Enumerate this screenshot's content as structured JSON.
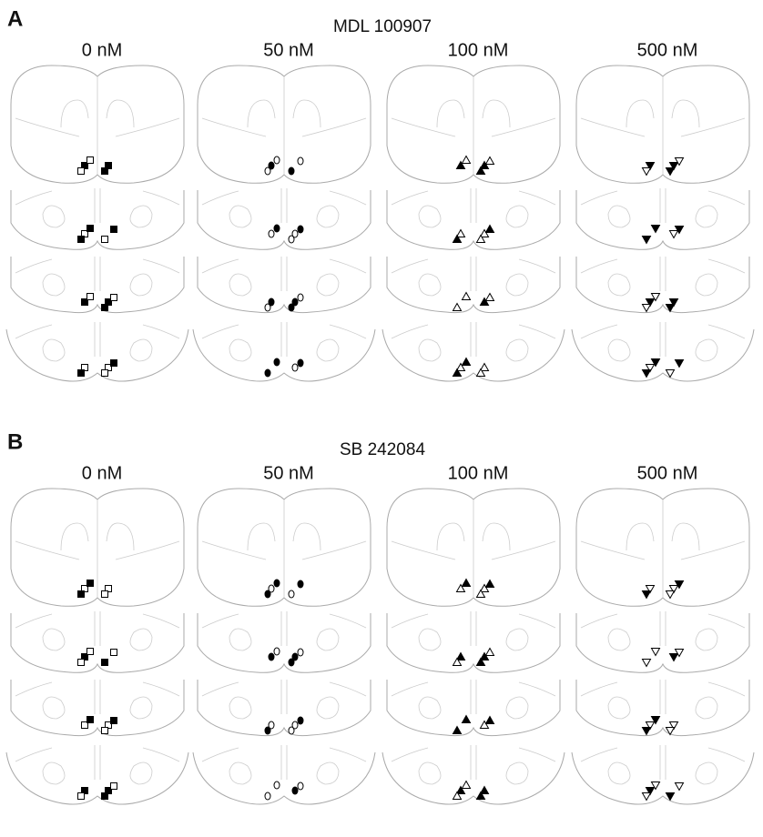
{
  "panels": [
    {
      "label": "A",
      "title": "MDL 100907",
      "columns": [
        "0 nM",
        "50 nM",
        "100 nM",
        "500 nM"
      ]
    },
    {
      "label": "B",
      "title": "SB 242084",
      "columns": [
        "0 nM",
        "50 nM",
        "100 nM",
        "500 nM"
      ]
    }
  ]
}
